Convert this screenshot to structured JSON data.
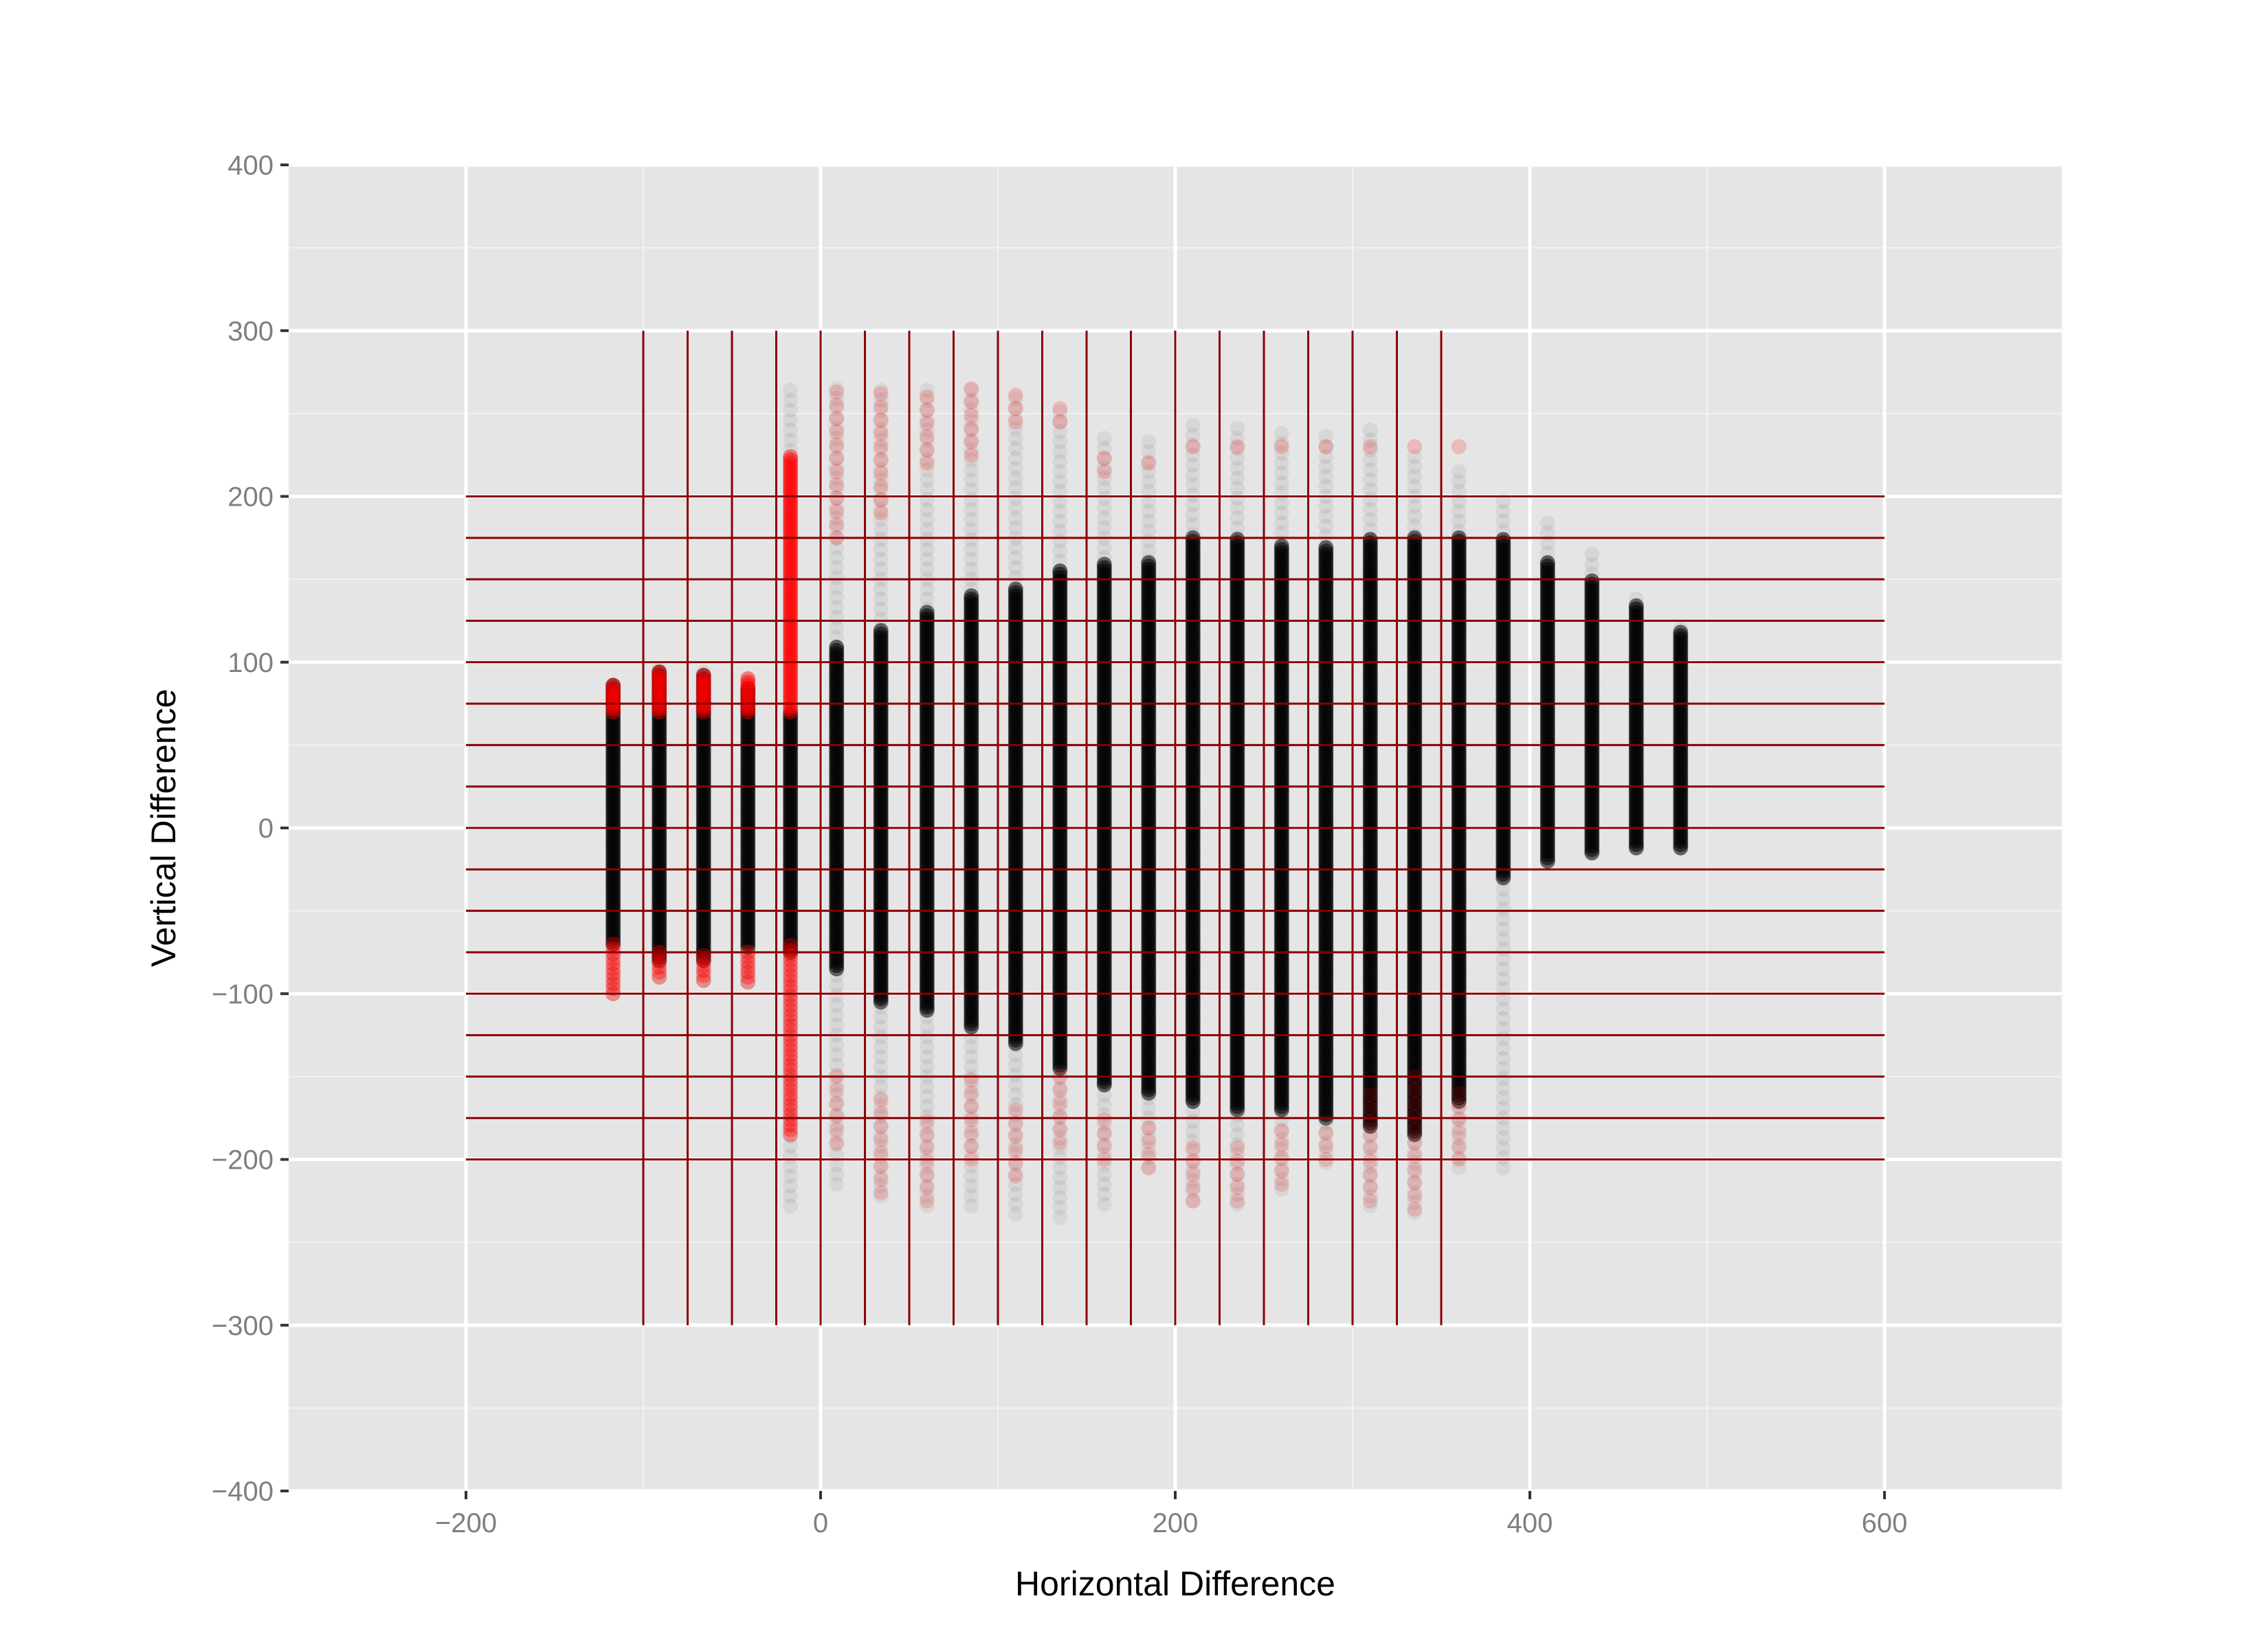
{
  "chart_data": {
    "type": "scatter",
    "title": "",
    "xlabel": "Horizontal Difference",
    "ylabel": "Vertical Difference",
    "xlim": [
      -300,
      700
    ],
    "ylim": [
      -400,
      400
    ],
    "x_ticks": [
      -200,
      0,
      200,
      400,
      600
    ],
    "x_tick_labels": [
      "−200",
      "0",
      "200",
      "400",
      "600"
    ],
    "y_ticks": [
      -400,
      -300,
      -200,
      -100,
      0,
      100,
      200,
      300,
      400
    ],
    "y_tick_labels": [
      "−400",
      "−300",
      "−200",
      "−100",
      "0",
      "100",
      "200",
      "300",
      "400"
    ],
    "grid": true,
    "legend": "none",
    "colors": {
      "panel": "#e5e5e5",
      "grid_major": "#ffffff",
      "grid_minor": "#f2f2f2",
      "points_in": "#000000",
      "points_out": "#ff0000",
      "overlay_lines": "#8b0000",
      "tick_label": "#7f7f7f",
      "tick_mark": "#333333"
    },
    "columns": [
      {
        "x": -117,
        "core": [
          -70,
          87
        ],
        "red_top": [
          70,
          87
        ],
        "red_bottom": [
          -100,
          -70
        ],
        "faint": [
          -100,
          90
        ]
      },
      {
        "x": -91,
        "core": [
          -80,
          95
        ],
        "red_top": [
          70,
          95
        ],
        "red_bottom": [
          -90,
          -75
        ],
        "faint": [
          -90,
          98
        ]
      },
      {
        "x": -66,
        "core": [
          -80,
          93
        ],
        "red_top": [
          70,
          93
        ],
        "red_bottom": [
          -92,
          -75
        ],
        "faint": [
          -92,
          95
        ]
      },
      {
        "x": -41,
        "core": [
          -72,
          85
        ],
        "red_top": [
          70,
          90
        ],
        "red_bottom": [
          -93,
          -75
        ],
        "faint": [
          -93,
          92
        ]
      },
      {
        "x": -17,
        "core": [
          -75,
          70
        ],
        "red_top": [
          70,
          225
        ],
        "red_bottom": [
          -185,
          -70
        ],
        "faint": [
          -228,
          266
        ]
      },
      {
        "x": 9,
        "core": [
          -85,
          110
        ],
        "red_top": [
          175,
          265
        ],
        "red_bottom": [
          -190,
          -150
        ],
        "faint": [
          -215,
          265
        ]
      },
      {
        "x": 34,
        "core": [
          -105,
          120
        ],
        "red_top": [
          190,
          268
        ],
        "red_bottom": [
          -220,
          -160
        ],
        "faint": [
          -222,
          268
        ]
      },
      {
        "x": 60,
        "core": [
          -110,
          130
        ],
        "red_top": [
          220,
          265
        ],
        "red_bottom": [
          -225,
          -170
        ],
        "faint": [
          -228,
          265
        ]
      },
      {
        "x": 85,
        "core": [
          -120,
          140
        ],
        "red_top": [
          225,
          265
        ],
        "red_bottom": [
          -200,
          -150
        ],
        "faint": [
          -228,
          265
        ]
      },
      {
        "x": 110,
        "core": [
          -130,
          145
        ],
        "red_top": [
          245,
          262
        ],
        "red_bottom": [
          -210,
          -170
        ],
        "faint": [
          -233,
          262
        ]
      },
      {
        "x": 135,
        "core": [
          -145,
          155
        ],
        "red_top": [
          245,
          255
        ],
        "red_bottom": [
          -190,
          -150
        ],
        "faint": [
          -235,
          255
        ]
      },
      {
        "x": 160,
        "core": [
          -155,
          160
        ],
        "red_top": [
          215,
          225
        ],
        "red_bottom": [
          -200,
          -170
        ],
        "faint": [
          -227,
          240
        ]
      },
      {
        "x": 185,
        "core": [
          -160,
          160
        ],
        "red_top": [
          220,
          225
        ],
        "red_bottom": [
          -205,
          -180
        ],
        "faint": [
          -205,
          235
        ]
      },
      {
        "x": 210,
        "core": [
          -165,
          175
        ],
        "red_top": [
          230,
          230
        ],
        "red_bottom": [
          -225,
          -190
        ],
        "faint": [
          -225,
          245
        ]
      },
      {
        "x": 235,
        "core": [
          -170,
          175
        ],
        "red_top": [
          230,
          230
        ],
        "red_bottom": [
          -225,
          -190
        ],
        "faint": [
          -227,
          245
        ]
      },
      {
        "x": 260,
        "core": [
          -170,
          170
        ],
        "red_top": [
          230,
          230
        ],
        "red_bottom": [
          -215,
          -180
        ],
        "faint": [
          -218,
          240
        ]
      },
      {
        "x": 285,
        "core": [
          -175,
          170
        ],
        "red_top": [
          230,
          230
        ],
        "red_bottom": [
          -200,
          -180
        ],
        "faint": [
          -202,
          240
        ]
      },
      {
        "x": 310,
        "core": [
          -180,
          175
        ],
        "red_top": [
          230,
          230
        ],
        "red_bottom": [
          -225,
          -160
        ],
        "faint": [
          -228,
          240
        ]
      },
      {
        "x": 335,
        "core": [
          -185,
          175
        ],
        "red_top": [
          230,
          230
        ],
        "red_bottom": [
          -230,
          -150
        ],
        "faint": [
          -232,
          225
        ]
      },
      {
        "x": 360,
        "core": [
          -165,
          175
        ],
        "red_top": [
          230,
          230
        ],
        "red_bottom": [
          -200,
          -160
        ],
        "faint": [
          -205,
          215
        ]
      },
      {
        "x": 385,
        "core": [
          -30,
          175
        ],
        "faint": [
          -205,
          200
        ]
      },
      {
        "x": 410,
        "core": [
          -20,
          160
        ],
        "faint": [
          -20,
          185
        ]
      },
      {
        "x": 435,
        "core": [
          -15,
          150
        ],
        "faint": [
          -15,
          165
        ]
      },
      {
        "x": 460,
        "core": [
          -12,
          135
        ],
        "faint": [
          -12,
          140
        ]
      },
      {
        "x": 485,
        "core": [
          -12,
          118
        ],
        "faint": [
          -12,
          120
        ]
      }
    ],
    "overlay_grid": {
      "vertical": {
        "x_from": -100,
        "x_to": 350,
        "step": 25,
        "y_range": [
          -300,
          300
        ]
      },
      "horizontal": {
        "y_from": -200,
        "y_to": 200,
        "step": 25,
        "x_range": [
          -200,
          600
        ]
      }
    }
  }
}
